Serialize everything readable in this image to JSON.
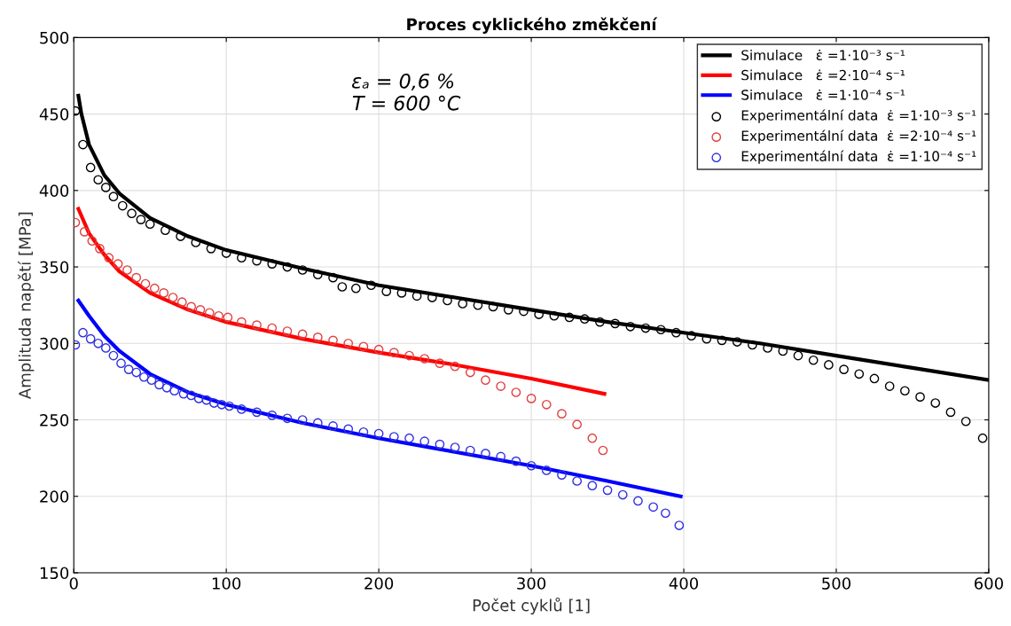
{
  "chart_data": {
    "type": "line",
    "title": "Proces cyklického změkčení",
    "xlabel": "Počet cyklů [1]",
    "ylabel": "Amplituda napětí [MPa]",
    "xlim": [
      0,
      600
    ],
    "xticks": [
      0,
      100,
      200,
      300,
      400,
      500,
      600
    ],
    "ylim": [
      150,
      500
    ],
    "yticks": [
      150,
      200,
      250,
      300,
      350,
      400,
      450,
      500
    ],
    "grid": true,
    "legend": "top right",
    "annotations": [
      "εₐ = 0,6 %\n T = 600 °C"
    ],
    "series": [
      {
        "name": "Simulace   ε̇ =1·10⁻³ s⁻¹",
        "color": "#000000",
        "marker": "none",
        "x": [
          3,
          5,
          10,
          20,
          30,
          50,
          75,
          100,
          150,
          200,
          250,
          300,
          350,
          400,
          450,
          500,
          550,
          600
        ],
        "values": [
          462,
          450,
          430,
          410,
          398,
          382,
          370,
          361,
          349,
          338,
          330,
          322,
          314,
          307,
          300,
          292,
          284,
          276
        ]
      },
      {
        "name": "Simulace   ε̇ =2·10⁻⁴ s⁻¹",
        "color": "#ff0000",
        "marker": "none",
        "x": [
          3,
          10,
          20,
          30,
          50,
          75,
          100,
          150,
          200,
          250,
          300,
          348
        ],
        "values": [
          388,
          372,
          358,
          347,
          333,
          322,
          314,
          303,
          294,
          286,
          277,
          267
        ]
      },
      {
        "name": "Simulace   ε̇ =1·10⁻⁴ s⁻¹",
        "color": "#0000ff",
        "marker": "none",
        "x": [
          3,
          10,
          20,
          30,
          50,
          75,
          100,
          150,
          200,
          250,
          300,
          350,
          398
        ],
        "values": [
          328,
          318,
          305,
          295,
          280,
          268,
          260,
          248,
          238,
          229,
          220,
          210,
          200
        ]
      },
      {
        "name": "Experimentální data  ε̇ =1·10⁻³ s⁻¹",
        "type": "scatter",
        "color": "#000000",
        "marker": "circle",
        "x": [
          1,
          6,
          11,
          16,
          21,
          26,
          32,
          38,
          44,
          50,
          60,
          70,
          80,
          90,
          100,
          110,
          120,
          130,
          140,
          150,
          160,
          170,
          176,
          185,
          195,
          205,
          215,
          225,
          235,
          245,
          255,
          265,
          275,
          285,
          295,
          305,
          315,
          325,
          335,
          345,
          355,
          365,
          375,
          385,
          395,
          405,
          415,
          425,
          435,
          445,
          455,
          465,
          475,
          485,
          495,
          505,
          515,
          525,
          535,
          545,
          555,
          565,
          575,
          585,
          596
        ],
        "values": [
          452,
          430,
          415,
          407,
          402,
          396,
          390,
          385,
          381,
          378,
          374,
          370,
          366,
          362,
          359,
          356,
          354,
          352,
          350,
          348,
          345,
          343,
          337,
          336,
          338,
          334,
          333,
          331,
          330,
          328,
          326,
          325,
          324,
          322,
          321,
          319,
          318,
          317,
          316,
          314,
          313,
          311,
          310,
          309,
          307,
          305,
          303,
          302,
          301,
          299,
          297,
          295,
          292,
          289,
          286,
          283,
          280,
          277,
          272,
          269,
          265,
          261,
          255,
          249,
          238
        ]
      },
      {
        "name": "Experimentální data  ε̇ =2·10⁻⁴ s⁻¹",
        "type": "scatter",
        "color": "#e04040",
        "marker": "circle",
        "x": [
          1,
          7,
          12,
          17,
          23,
          29,
          35,
          41,
          47,
          53,
          59,
          65,
          71,
          77,
          83,
          89,
          95,
          101,
          110,
          120,
          130,
          140,
          150,
          160,
          170,
          180,
          190,
          200,
          210,
          220,
          230,
          240,
          250,
          260,
          270,
          280,
          290,
          300,
          310,
          320,
          330,
          340,
          347
        ],
        "values": [
          379,
          373,
          367,
          362,
          356,
          352,
          348,
          343,
          339,
          336,
          333,
          330,
          327,
          324,
          322,
          320,
          318,
          317,
          314,
          312,
          310,
          308,
          306,
          304,
          302,
          300,
          298,
          296,
          294,
          292,
          290,
          287,
          285,
          281,
          276,
          272,
          268,
          264,
          260,
          254,
          247,
          238,
          230
        ]
      },
      {
        "name": "Experimentální data  ε̇ =1·10⁻⁴ s⁻¹",
        "type": "scatter",
        "color": "#3030e0",
        "marker": "circle",
        "x": [
          1,
          6,
          11,
          16,
          21,
          26,
          31,
          36,
          41,
          46,
          51,
          56,
          61,
          66,
          72,
          77,
          82,
          87,
          92,
          97,
          102,
          110,
          120,
          130,
          140,
          150,
          160,
          170,
          180,
          190,
          200,
          210,
          220,
          230,
          240,
          250,
          260,
          270,
          280,
          290,
          300,
          310,
          320,
          330,
          340,
          350,
          360,
          370,
          380,
          388,
          397
        ],
        "values": [
          299,
          307,
          303,
          300,
          297,
          292,
          287,
          283,
          281,
          278,
          276,
          273,
          271,
          269,
          267,
          266,
          264,
          263,
          261,
          260,
          259,
          257,
          255,
          253,
          251,
          250,
          248,
          246,
          244,
          242,
          241,
          239,
          238,
          236,
          234,
          232,
          230,
          228,
          226,
          223,
          220,
          217,
          214,
          210,
          207,
          204,
          201,
          197,
          193,
          189,
          181
        ]
      }
    ]
  }
}
